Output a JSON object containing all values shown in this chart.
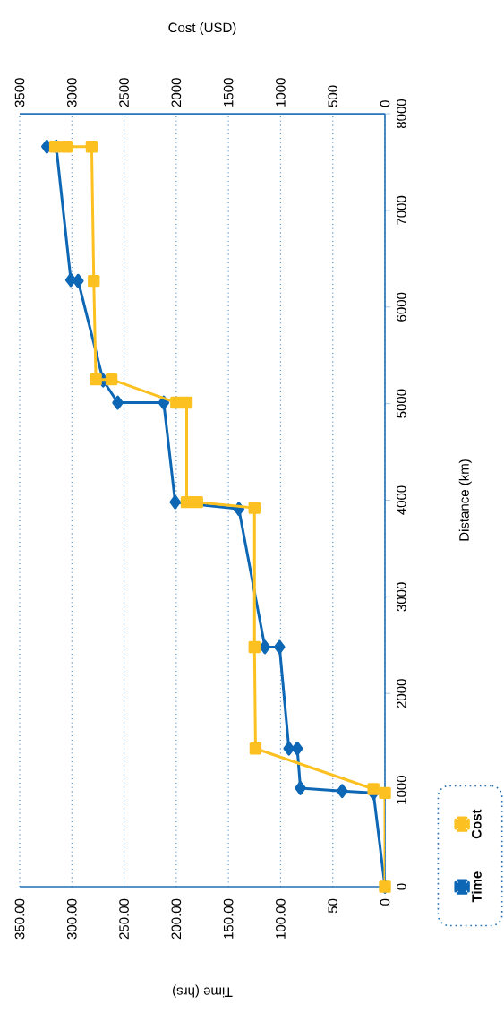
{
  "chart_data": {
    "type": "line",
    "xlabel": "Time (hrs)",
    "ylabel": "Distance (km)",
    "x2label": "Cost (USD)",
    "ylim": [
      0,
      8000
    ],
    "yticks": [
      0,
      1000,
      2000,
      3000,
      4000,
      5000,
      6000,
      7000,
      8000
    ],
    "xlim": [
      350,
      0
    ],
    "xticks": [
      0,
      50,
      {
        "value": 100,
        "label": "100.00"
      },
      {
        "value": 150,
        "label": "150.00"
      },
      {
        "value": 200,
        "label": "200.00"
      },
      {
        "value": 250,
        "label": "250.00"
      },
      {
        "value": 300,
        "label": "300.00"
      },
      {
        "value": 350,
        "label": "350.00"
      }
    ],
    "x2lim": [
      3500,
      0
    ],
    "x2ticks": [
      0,
      500,
      1000,
      1500,
      2000,
      2500,
      3000,
      3500
    ],
    "grid": "x",
    "legend": "bottom right",
    "line_style": "solid",
    "series": [
      {
        "name": "Time",
        "color": "#0d67b5",
        "marker": "diamond",
        "x": [
          0,
          11,
          41,
          81,
          84,
          92,
          101,
          115,
          140,
          201,
          212,
          256,
          270,
          294,
          301,
          315,
          324
        ],
        "values": [
          0,
          970,
          990,
          1020,
          1430,
          1430,
          2480,
          2480,
          3910,
          3980,
          5010,
          5010,
          5240,
          6270,
          6280,
          7660,
          7660
        ]
      },
      {
        "name": "Cost",
        "color": "#fcc121",
        "marker": "square",
        "axis": "x2",
        "x": [
          0,
          0,
          110,
          1240,
          1250,
          1250,
          1800,
          1900,
          1900,
          2000,
          2620,
          2770,
          2790,
          2810,
          3050,
          3160
        ],
        "values": [
          0,
          970,
          1010,
          1430,
          2480,
          3920,
          3980,
          3980,
          5010,
          5010,
          5250,
          5250,
          6270,
          7660,
          7660,
          7660
        ]
      }
    ]
  }
}
